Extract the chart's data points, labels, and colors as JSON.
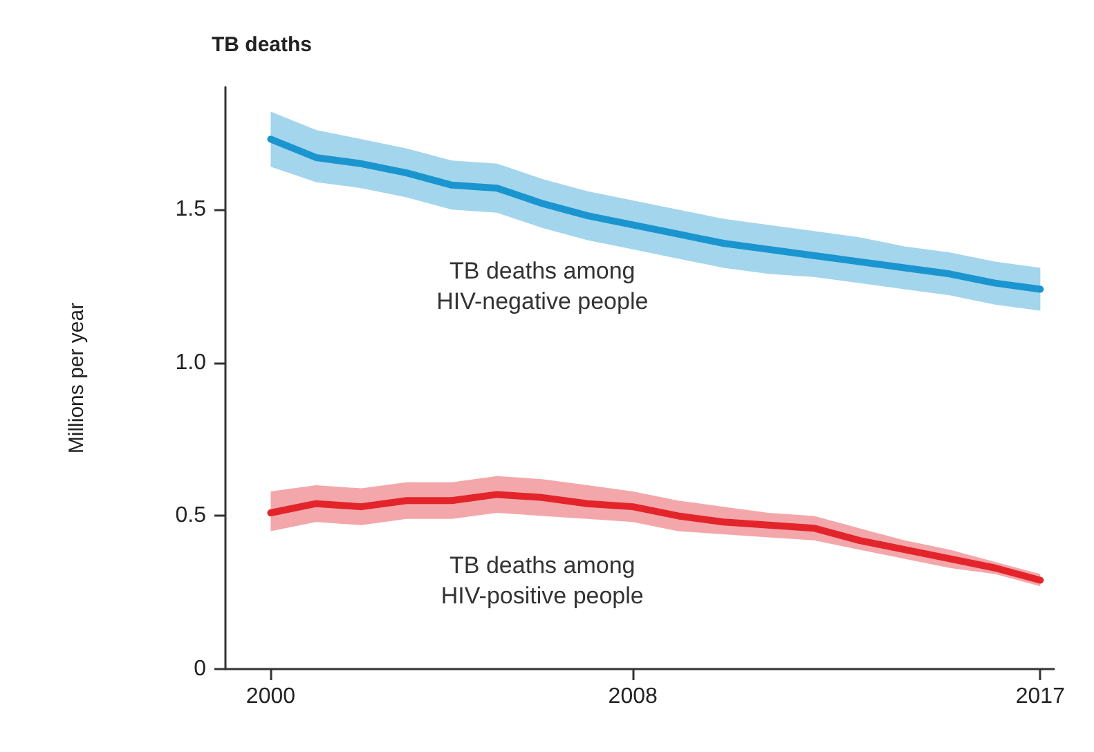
{
  "chart_data": {
    "type": "line",
    "title": "TB deaths",
    "ylabel": "Millions per year",
    "x": [
      2000,
      2001,
      2002,
      2003,
      2004,
      2005,
      2006,
      2007,
      2008,
      2009,
      2010,
      2011,
      2012,
      2013,
      2014,
      2015,
      2016,
      2017
    ],
    "series": [
      {
        "name": "TB deaths among\nHIV-negative people",
        "color": "#1a95cf",
        "values": [
          1.73,
          1.67,
          1.65,
          1.62,
          1.58,
          1.57,
          1.52,
          1.48,
          1.45,
          1.42,
          1.39,
          1.37,
          1.35,
          1.33,
          1.31,
          1.29,
          1.26,
          1.24
        ],
        "lower": [
          1.64,
          1.59,
          1.57,
          1.54,
          1.5,
          1.49,
          1.44,
          1.4,
          1.37,
          1.34,
          1.31,
          1.29,
          1.28,
          1.26,
          1.24,
          1.22,
          1.19,
          1.17
        ],
        "upper": [
          1.82,
          1.76,
          1.73,
          1.7,
          1.66,
          1.65,
          1.6,
          1.56,
          1.53,
          1.5,
          1.47,
          1.45,
          1.43,
          1.41,
          1.38,
          1.36,
          1.33,
          1.31
        ]
      },
      {
        "name": "TB deaths among\nHIV-positive people",
        "color": "#e3242b",
        "values": [
          0.51,
          0.54,
          0.53,
          0.55,
          0.55,
          0.57,
          0.56,
          0.54,
          0.53,
          0.5,
          0.48,
          0.47,
          0.46,
          0.42,
          0.39,
          0.36,
          0.33,
          0.29
        ],
        "lower": [
          0.45,
          0.48,
          0.47,
          0.49,
          0.49,
          0.51,
          0.5,
          0.49,
          0.48,
          0.45,
          0.44,
          0.43,
          0.42,
          0.39,
          0.36,
          0.33,
          0.31,
          0.27
        ],
        "upper": [
          0.58,
          0.6,
          0.59,
          0.61,
          0.61,
          0.63,
          0.62,
          0.6,
          0.58,
          0.55,
          0.53,
          0.51,
          0.5,
          0.46,
          0.42,
          0.39,
          0.35,
          0.31
        ]
      }
    ],
    "xlim": [
      1999,
      2017.3
    ],
    "xticks": [
      2000,
      2008,
      2017
    ],
    "ylim": [
      0,
      1.9
    ],
    "yticks": [
      0,
      0.5,
      {
        "value": 1,
        "label": "1.0"
      },
      1.5
    ],
    "grid": false,
    "legend": false,
    "marker": "none",
    "line_style": "solid"
  }
}
